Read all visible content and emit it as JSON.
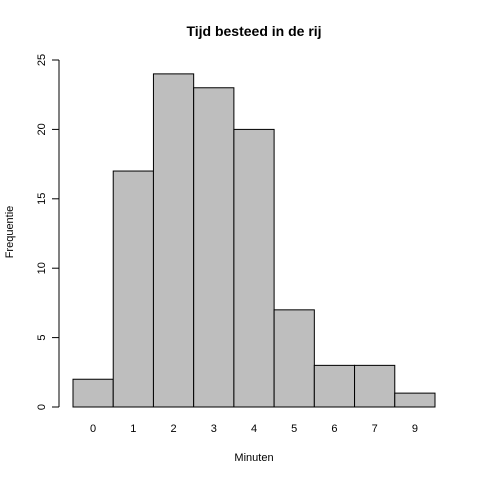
{
  "chart_data": {
    "type": "bar",
    "title": "Tijd besteed in de rij",
    "xlabel": "Minuten",
    "ylabel": "Frequentie",
    "categories": [
      "0",
      "1",
      "2",
      "3",
      "4",
      "5",
      "6",
      "7",
      "9"
    ],
    "values": [
      2,
      17,
      24,
      23,
      20,
      7,
      3,
      3,
      1
    ],
    "ylim": [
      0,
      25
    ],
    "yticks": [
      0,
      5,
      10,
      15,
      20,
      25
    ],
    "bar_color": "#bebebe",
    "grid": false,
    "legend": "none"
  }
}
